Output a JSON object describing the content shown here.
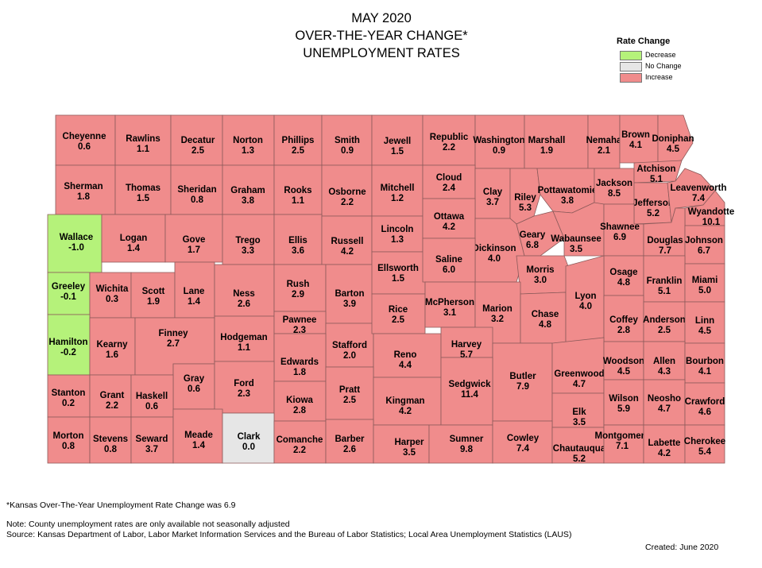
{
  "title": {
    "line1": "MAY 2020",
    "line2": "OVER-THE-YEAR CHANGE*",
    "line3": "UNEMPLOYMENT RATES"
  },
  "legend": {
    "title": "Rate Change",
    "items": [
      {
        "label": "Decrease",
        "color": "#b5f27a"
      },
      {
        "label": "No Change",
        "color": "#e6e6e6"
      },
      {
        "label": "Increase",
        "color": "#f08c8c"
      }
    ]
  },
  "colors": {
    "increase": "#f08c8c",
    "decrease": "#b5f27a",
    "nochange": "#e6e6e6",
    "border": "#8c5a5a"
  },
  "counties": [
    {
      "name": "Cheyenne",
      "value": "0.6"
    },
    {
      "name": "Rawlins",
      "value": "1.1"
    },
    {
      "name": "Decatur",
      "value": "2.5"
    },
    {
      "name": "Norton",
      "value": "1.3"
    },
    {
      "name": "Phillips",
      "value": "2.5"
    },
    {
      "name": "Smith",
      "value": "0.9"
    },
    {
      "name": "Jewell",
      "value": "1.5"
    },
    {
      "name": "Republic",
      "value": "2.2"
    },
    {
      "name": "Washington",
      "value": "0.9"
    },
    {
      "name": "Marshall",
      "value": "1.9"
    },
    {
      "name": "Nemaha",
      "value": "2.1"
    },
    {
      "name": "Brown",
      "value": "4.1"
    },
    {
      "name": "Doniphan",
      "value": "4.5"
    },
    {
      "name": "Sherman",
      "value": "1.8"
    },
    {
      "name": "Thomas",
      "value": "1.5"
    },
    {
      "name": "Sheridan",
      "value": "0.8"
    },
    {
      "name": "Graham",
      "value": "3.8"
    },
    {
      "name": "Rooks",
      "value": "1.1"
    },
    {
      "name": "Osborne",
      "value": "2.2"
    },
    {
      "name": "Mitchell",
      "value": "1.2"
    },
    {
      "name": "Cloud",
      "value": "2.4"
    },
    {
      "name": "Clay",
      "value": "3.7"
    },
    {
      "name": "Riley",
      "value": "5.3"
    },
    {
      "name": "Pottawatomie",
      "value": "3.8"
    },
    {
      "name": "Jackson",
      "value": "8.5"
    },
    {
      "name": "Atchison",
      "value": "5.1"
    },
    {
      "name": "Jefferson",
      "value": "5.2"
    },
    {
      "name": "Leavenworth",
      "value": "7.4"
    },
    {
      "name": "Wyandotte",
      "value": "10.1"
    },
    {
      "name": "Wallace",
      "value": "-1.0"
    },
    {
      "name": "Logan",
      "value": "1.4"
    },
    {
      "name": "Gove",
      "value": "1.7"
    },
    {
      "name": "Trego",
      "value": "3.3"
    },
    {
      "name": "Ellis",
      "value": "3.6"
    },
    {
      "name": "Russell",
      "value": "4.2"
    },
    {
      "name": "Lincoln",
      "value": "1.3"
    },
    {
      "name": "Ottawa",
      "value": "4.2"
    },
    {
      "name": "Dickinson",
      "value": "4.0"
    },
    {
      "name": "Geary",
      "value": "6.8"
    },
    {
      "name": "Wabaunsee",
      "value": "3.5"
    },
    {
      "name": "Shawnee",
      "value": "6.9"
    },
    {
      "name": "Douglas",
      "value": "7.7"
    },
    {
      "name": "Johnson",
      "value": "6.7"
    },
    {
      "name": "Greeley",
      "value": "-0.1"
    },
    {
      "name": "Wichita",
      "value": "0.3"
    },
    {
      "name": "Scott",
      "value": "1.9"
    },
    {
      "name": "Lane",
      "value": "1.4"
    },
    {
      "name": "Ness",
      "value": "2.6"
    },
    {
      "name": "Rush",
      "value": "2.9"
    },
    {
      "name": "Barton",
      "value": "3.9"
    },
    {
      "name": "Ellsworth",
      "value": "1.5"
    },
    {
      "name": "Saline",
      "value": "6.0"
    },
    {
      "name": "Morris",
      "value": "3.0"
    },
    {
      "name": "Osage",
      "value": "4.8"
    },
    {
      "name": "Franklin",
      "value": "5.1"
    },
    {
      "name": "Miami",
      "value": "5.0"
    },
    {
      "name": "Hamilton",
      "value": "-0.2"
    },
    {
      "name": "Kearny",
      "value": "1.6"
    },
    {
      "name": "Finney",
      "value": "2.7"
    },
    {
      "name": "Hodgeman",
      "value": "1.1"
    },
    {
      "name": "Pawnee",
      "value": "2.3"
    },
    {
      "name": "Stafford",
      "value": "2.0"
    },
    {
      "name": "Rice",
      "value": "2.5"
    },
    {
      "name": "McPherson",
      "value": "3.1"
    },
    {
      "name": "Marion",
      "value": "3.2"
    },
    {
      "name": "Chase",
      "value": "4.8"
    },
    {
      "name": "Lyon",
      "value": "4.0"
    },
    {
      "name": "Coffey",
      "value": "2.8"
    },
    {
      "name": "Anderson",
      "value": "2.5"
    },
    {
      "name": "Linn",
      "value": "4.5"
    },
    {
      "name": "Gray",
      "value": "0.6"
    },
    {
      "name": "Edwards",
      "value": "1.8"
    },
    {
      "name": "Reno",
      "value": "4.4"
    },
    {
      "name": "Harvey",
      "value": "5.7"
    },
    {
      "name": "Butler",
      "value": "7.9"
    },
    {
      "name": "Greenwood",
      "value": "4.7"
    },
    {
      "name": "Woodson",
      "value": "4.5"
    },
    {
      "name": "Allen",
      "value": "4.3"
    },
    {
      "name": "Bourbon",
      "value": "4.1"
    },
    {
      "name": "Stanton",
      "value": "0.2"
    },
    {
      "name": "Grant",
      "value": "2.2"
    },
    {
      "name": "Haskell",
      "value": "0.6"
    },
    {
      "name": "Ford",
      "value": "2.3"
    },
    {
      "name": "Kiowa",
      "value": "2.8"
    },
    {
      "name": "Pratt",
      "value": "2.5"
    },
    {
      "name": "Kingman",
      "value": "4.2"
    },
    {
      "name": "Sedgwick",
      "value": "11.4"
    },
    {
      "name": "Elk",
      "value": "3.5"
    },
    {
      "name": "Wilson",
      "value": "5.9"
    },
    {
      "name": "Neosho",
      "value": "4.7"
    },
    {
      "name": "Crawford",
      "value": "4.6"
    },
    {
      "name": "Morton",
      "value": "0.8"
    },
    {
      "name": "Stevens",
      "value": "0.8"
    },
    {
      "name": "Seward",
      "value": "3.7"
    },
    {
      "name": "Meade",
      "value": "1.4"
    },
    {
      "name": "Clark",
      "value": "0.0"
    },
    {
      "name": "Comanche",
      "value": "2.2"
    },
    {
      "name": "Barber",
      "value": "2.6"
    },
    {
      "name": "Harper",
      "value": "3.5"
    },
    {
      "name": "Sumner",
      "value": "9.8"
    },
    {
      "name": "Cowley",
      "value": "7.4"
    },
    {
      "name": "Chautauqua",
      "value": "5.2"
    },
    {
      "name": "Montgomery",
      "value": "7.1"
    },
    {
      "name": "Labette",
      "value": "4.2"
    },
    {
      "name": "Cherokee",
      "value": "5.4"
    }
  ],
  "footnotes": {
    "state": "*Kansas Over-The-Year Unemployment Rate Change was 6.9",
    "note": "Note: County unemployment rates are only available not seasonally adjusted",
    "source": "Source: Kansas Department of Labor, Labor Market Information Services and the Bureau of Labor Statistics; Local Area Unemployment Statistics (LAUS)",
    "created": "Created:  June 2020"
  }
}
